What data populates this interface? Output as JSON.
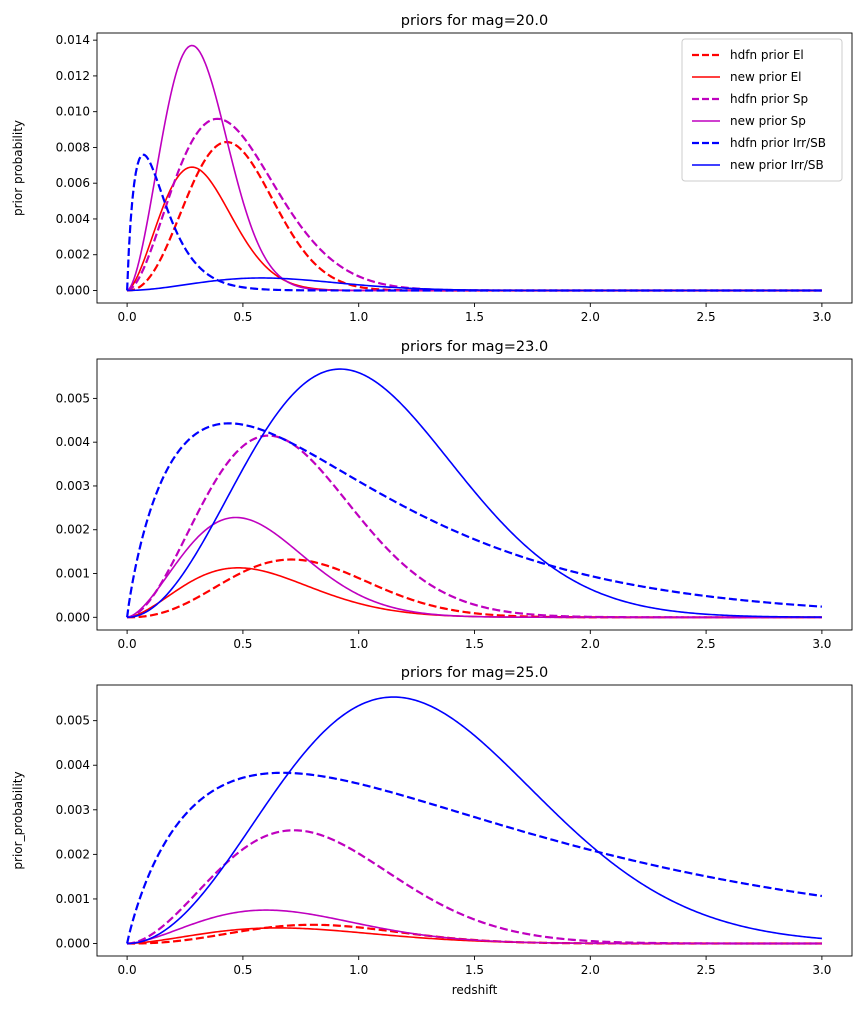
{
  "chart_data": [
    {
      "type": "line",
      "title": "priors for mag=20.0",
      "xlabel": "",
      "ylabel": "prior probability",
      "xlim": [
        -0.13,
        3.13
      ],
      "ylim": [
        -0.0007,
        0.0144
      ],
      "xticks": [
        0.0,
        0.5,
        1.0,
        1.5,
        2.0,
        2.5,
        3.0
      ],
      "xtick_labels": [
        "0.0",
        "0.5",
        "1.0",
        "1.5",
        "2.0",
        "2.5",
        "3.0"
      ],
      "yticks": [
        0.0,
        0.002,
        0.004,
        0.006,
        0.008,
        0.01,
        0.012,
        0.014
      ],
      "ytick_labels": [
        "0.000",
        "0.002",
        "0.004",
        "0.006",
        "0.008",
        "0.010",
        "0.012",
        "0.014"
      ],
      "grid": false,
      "legend_position": "top-right",
      "series": [
        {
          "name": "hdfn prior El",
          "color": "#ff0000",
          "style": "dashed",
          "peak_x": 0.43,
          "peak_y": 0.0083,
          "shape_p": 2.3,
          "shape_q": 2.2
        },
        {
          "name": "new prior El",
          "color": "#ff0000",
          "style": "solid",
          "peak_x": 0.28,
          "peak_y": 0.0069,
          "shape_p": 1.6,
          "shape_q": 2.0
        },
        {
          "name": "hdfn prior Sp",
          "color": "#bf00bf",
          "style": "dashed",
          "peak_x": 0.39,
          "peak_y": 0.0096,
          "shape_p": 1.8,
          "shape_q": 1.7
        },
        {
          "name": "new prior Sp",
          "color": "#bf00bf",
          "style": "solid",
          "peak_x": 0.28,
          "peak_y": 0.0137,
          "shape_p": 1.7,
          "shape_q": 2.2
        },
        {
          "name": "hdfn prior Irr/SB",
          "color": "#0000ff",
          "style": "dashed",
          "peak_x": 0.07,
          "peak_y": 0.0076,
          "shape_p": 0.9,
          "shape_q": 1.0
        },
        {
          "name": "new prior Irr/SB",
          "color": "#0000ff",
          "style": "solid",
          "peak_x": 0.58,
          "peak_y": 0.0007,
          "shape_p": 1.8,
          "shape_q": 2.0
        }
      ]
    },
    {
      "type": "line",
      "title": "priors for mag=23.0",
      "xlabel": "",
      "ylabel": "",
      "xlim": [
        -0.13,
        3.13
      ],
      "ylim": [
        -0.00029,
        0.0059
      ],
      "xticks": [
        0.0,
        0.5,
        1.0,
        1.5,
        2.0,
        2.5,
        3.0
      ],
      "xtick_labels": [
        "0.0",
        "0.5",
        "1.0",
        "1.5",
        "2.0",
        "2.5",
        "3.0"
      ],
      "yticks": [
        0.0,
        0.001,
        0.002,
        0.003,
        0.004,
        0.005
      ],
      "ytick_labels": [
        "0.000",
        "0.001",
        "0.002",
        "0.003",
        "0.004",
        "0.005"
      ],
      "grid": false,
      "series": [
        {
          "name": "hdfn prior El",
          "color": "#ff0000",
          "style": "dashed",
          "peak_x": 0.71,
          "peak_y": 0.00132,
          "shape_p": 2.3,
          "shape_q": 2.2
        },
        {
          "name": "new prior El",
          "color": "#ff0000",
          "style": "solid",
          "peak_x": 0.48,
          "peak_y": 0.00113,
          "shape_p": 1.6,
          "shape_q": 1.8
        },
        {
          "name": "hdfn prior Sp",
          "color": "#bf00bf",
          "style": "dashed",
          "peak_x": 0.61,
          "peak_y": 0.00415,
          "shape_p": 1.8,
          "shape_q": 1.9
        },
        {
          "name": "new prior Sp",
          "color": "#bf00bf",
          "style": "solid",
          "peak_x": 0.47,
          "peak_y": 0.00228,
          "shape_p": 1.6,
          "shape_q": 1.9
        },
        {
          "name": "hdfn prior Irr/SB",
          "color": "#0000ff",
          "style": "dashed",
          "peak_x": 0.44,
          "peak_y": 0.00443,
          "shape_p": 0.9,
          "shape_q": 0.9
        },
        {
          "name": "new prior Irr/SB",
          "color": "#0000ff",
          "style": "solid",
          "peak_x": 0.92,
          "peak_y": 0.00567,
          "shape_p": 2.0,
          "shape_q": 2.0
        }
      ]
    },
    {
      "type": "line",
      "title": "priors for mag=25.0",
      "xlabel": "redshift",
      "ylabel": "prior_probability",
      "xlim": [
        -0.13,
        3.13
      ],
      "ylim": [
        -0.00028,
        0.0058
      ],
      "xticks": [
        0.0,
        0.5,
        1.0,
        1.5,
        2.0,
        2.5,
        3.0
      ],
      "xtick_labels": [
        "0.0",
        "0.5",
        "1.0",
        "1.5",
        "2.0",
        "2.5",
        "3.0"
      ],
      "yticks": [
        0.0,
        0.001,
        0.002,
        0.003,
        0.004,
        0.005
      ],
      "ytick_labels": [
        "0.000",
        "0.001",
        "0.002",
        "0.003",
        "0.004",
        "0.005"
      ],
      "grid": false,
      "series": [
        {
          "name": "hdfn prior El",
          "color": "#ff0000",
          "style": "dashed",
          "peak_x": 0.8,
          "peak_y": 0.00042,
          "shape_p": 2.3,
          "shape_q": 2.2
        },
        {
          "name": "new prior El",
          "color": "#ff0000",
          "style": "solid",
          "peak_x": 0.65,
          "peak_y": 0.00035,
          "shape_p": 1.6,
          "shape_q": 1.8
        },
        {
          "name": "hdfn prior Sp",
          "color": "#bf00bf",
          "style": "dashed",
          "peak_x": 0.72,
          "peak_y": 0.00254,
          "shape_p": 1.8,
          "shape_q": 1.9
        },
        {
          "name": "new prior Sp",
          "color": "#bf00bf",
          "style": "solid",
          "peak_x": 0.6,
          "peak_y": 0.00075,
          "shape_p": 1.6,
          "shape_q": 1.8
        },
        {
          "name": "hdfn prior Irr/SB",
          "color": "#0000ff",
          "style": "dashed",
          "peak_x": 0.67,
          "peak_y": 0.00383,
          "shape_p": 0.95,
          "shape_q": 0.78
        },
        {
          "name": "new prior Irr/SB",
          "color": "#0000ff",
          "style": "solid",
          "peak_x": 1.15,
          "peak_y": 0.00553,
          "shape_p": 2.0,
          "shape_q": 2.0
        }
      ]
    }
  ]
}
